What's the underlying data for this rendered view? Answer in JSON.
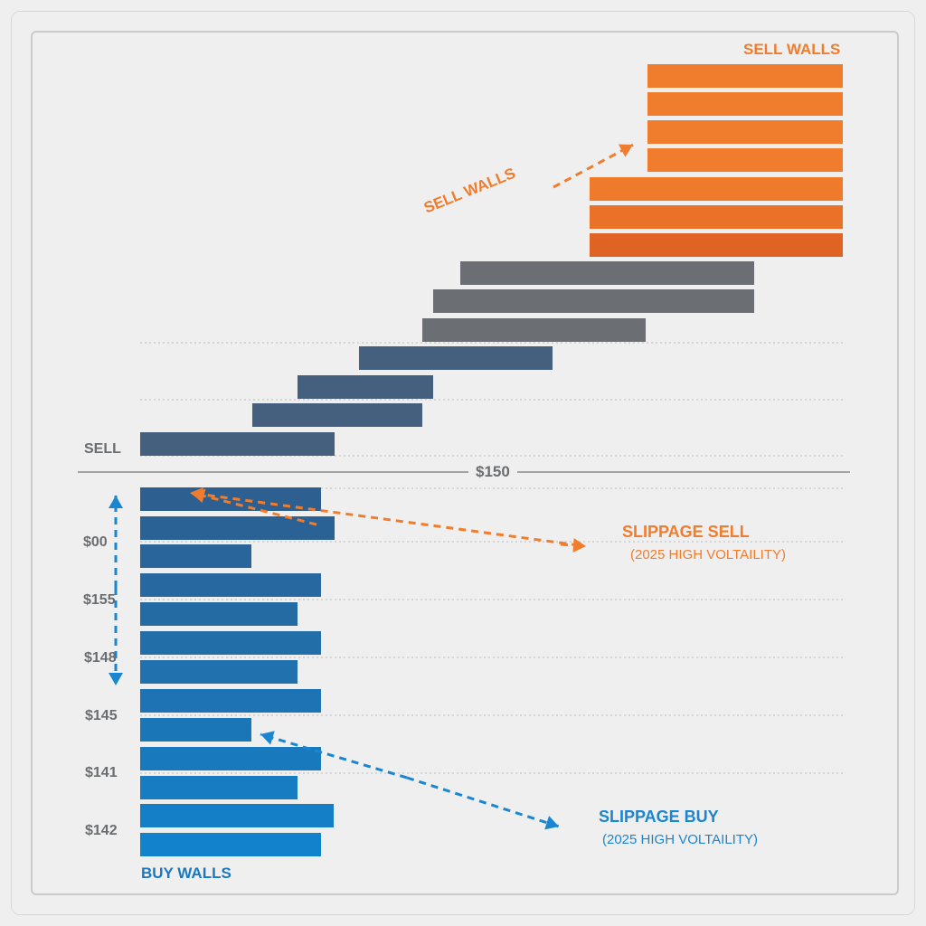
{
  "chart_data": {
    "type": "bar",
    "orientation": "horizontal",
    "annotations": {
      "sell_walls_top": "SELL WALLS",
      "sell_walls_rotated": "SELL WALLS",
      "sell_label": "SELL",
      "mid_price": "$150",
      "slippage_sell": "SLIPPAGE SELL",
      "slippage_sell_sub": "(2025 HIGH VOLTAILITY)",
      "slippage_buy": "SLIPPAGE BUY",
      "slippage_buy_sub": "(2025 HIGH VOLTAILITY)",
      "buy_walls": "BUY WALLS"
    },
    "tick_labels": [
      "$00",
      "$155",
      "$148",
      "$145",
      "$141",
      "$142"
    ],
    "grid": "dotted horizontal",
    "colors": {
      "sell_walls": "#f07d2e",
      "mid": "#6b6e72",
      "sell": "#45607f",
      "buy": "#1a78c2",
      "slippage_sell": "#f07d2e",
      "slippage_buy": "#1a86d0"
    }
  }
}
